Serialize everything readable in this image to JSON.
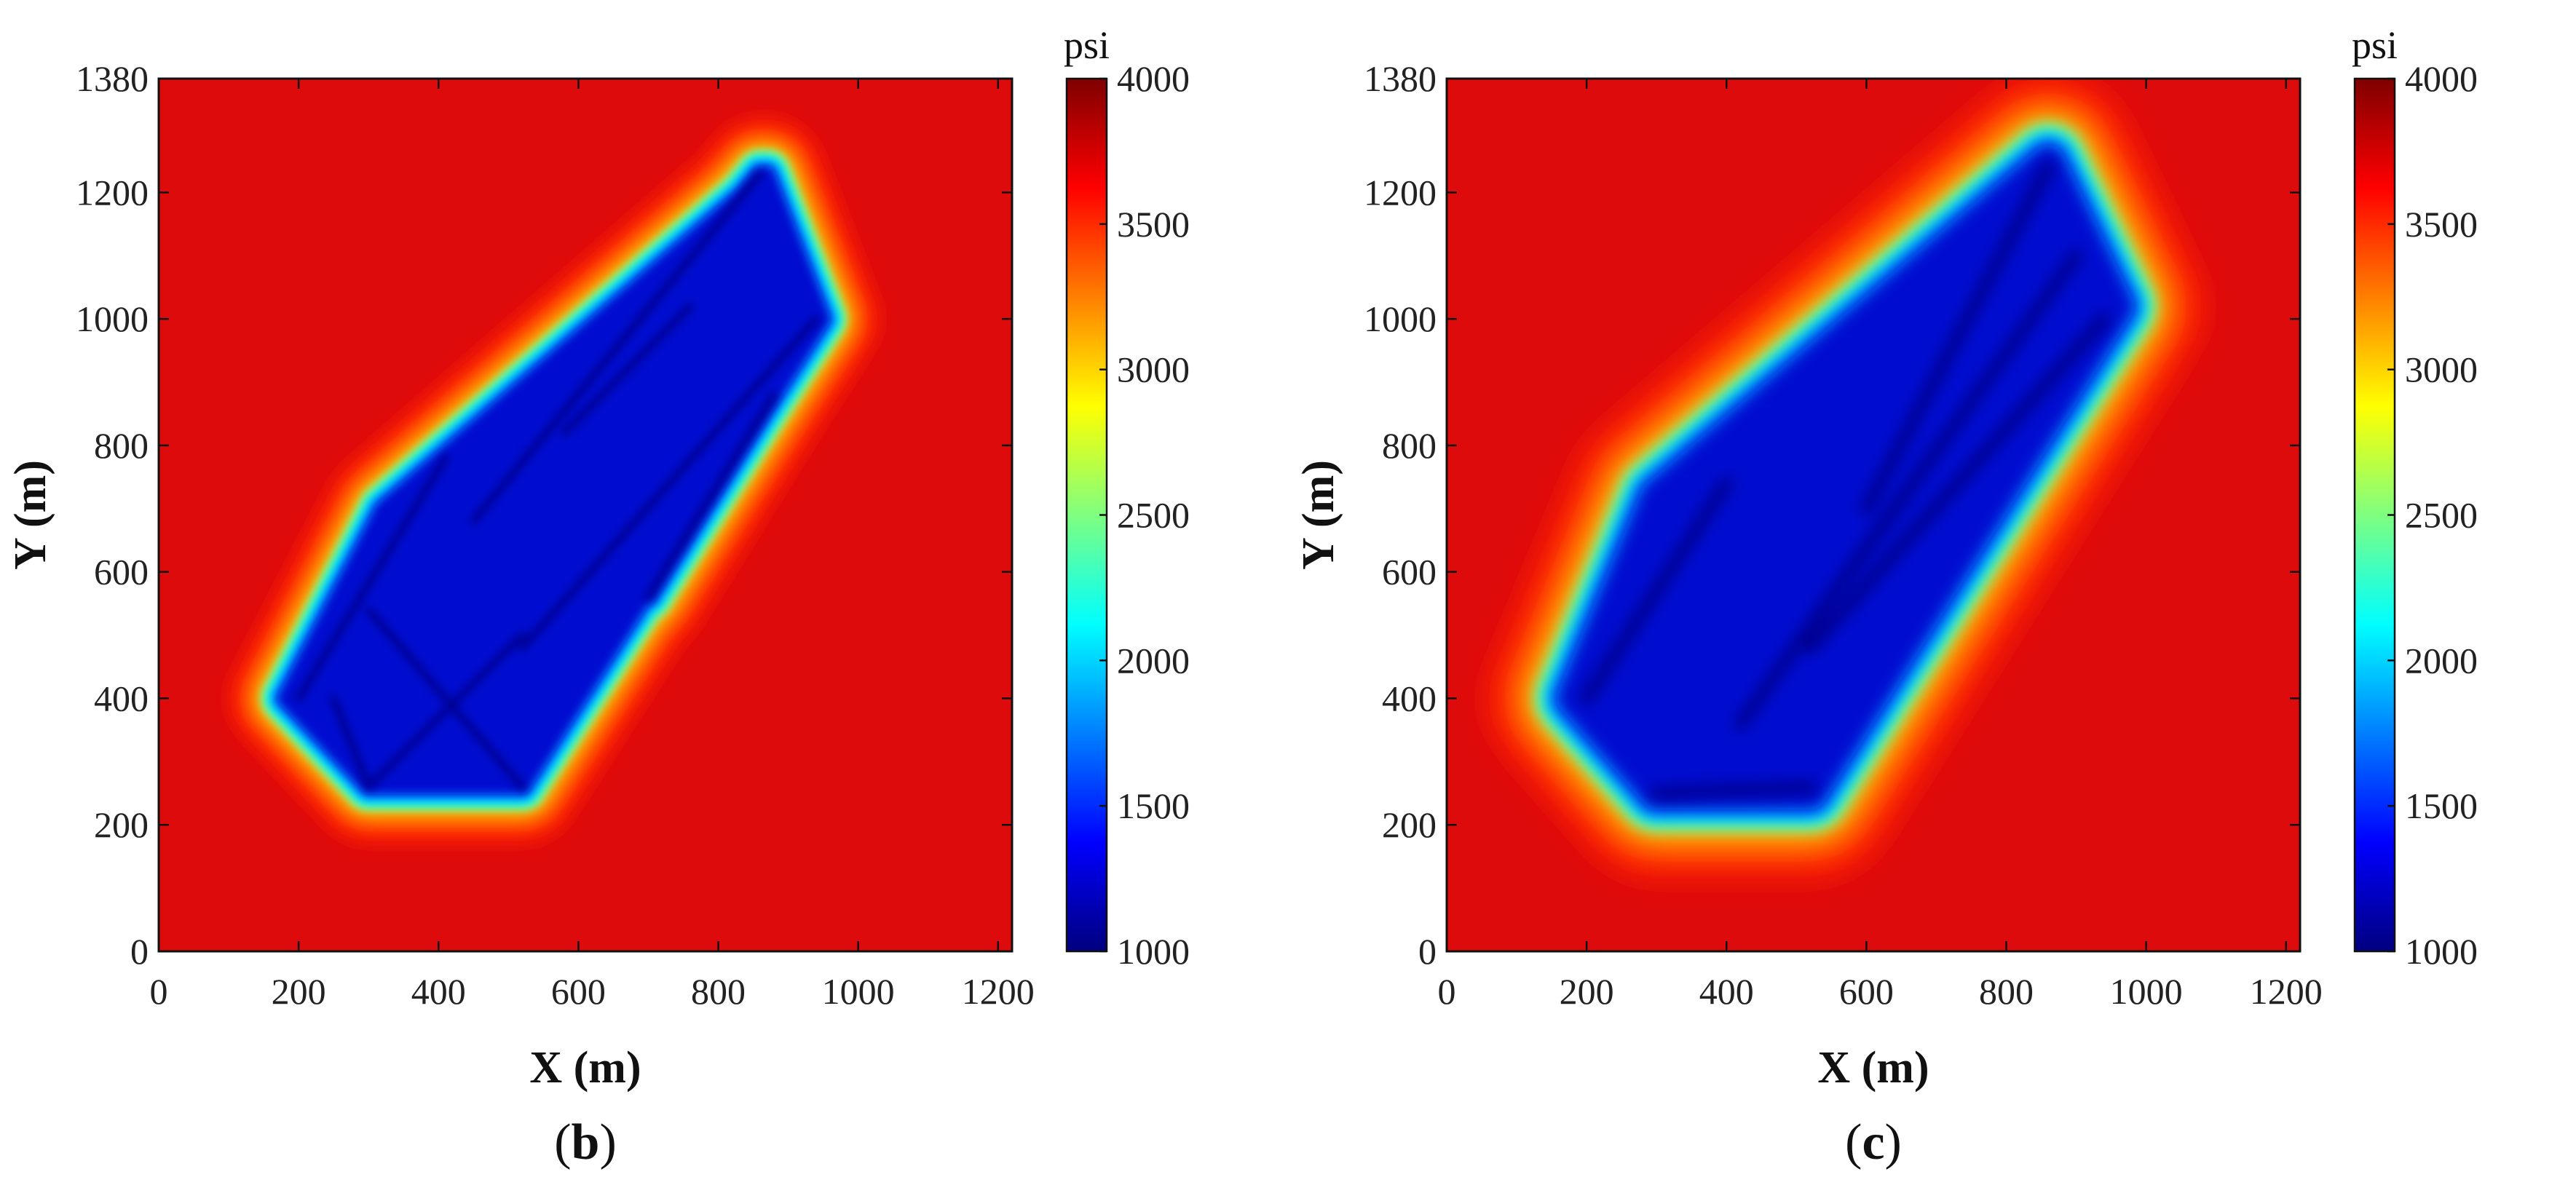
{
  "panels": [
    {
      "caption_open": "(",
      "caption_letter": "b",
      "caption_close": ")",
      "xlabel": "X (m)",
      "ylabel": "Y (m)",
      "colorbar_unit": "psi"
    },
    {
      "caption_open": "(",
      "caption_letter": "c",
      "caption_close": ")",
      "xlabel": "X (m)",
      "ylabel": "Y (m)",
      "colorbar_unit": "psi"
    }
  ],
  "colors": {
    "background_pressure": "#dd0b0b",
    "colormap": [
      "#00007f",
      "#0000ff",
      "#007fff",
      "#00ffff",
      "#7fff7f",
      "#ffff00",
      "#ff7f00",
      "#ff0000",
      "#7f0000"
    ]
  },
  "chart_data": [
    {
      "type": "heatmap",
      "panel": "b",
      "xlabel": "X (m)",
      "ylabel": "Y (m)",
      "xlim": [
        0,
        1220
      ],
      "ylim": [
        0,
        1380
      ],
      "xticks": [
        0,
        200,
        400,
        600,
        800,
        1000,
        1200
      ],
      "yticks": [
        0,
        200,
        400,
        600,
        800,
        1000,
        1200,
        1380
      ],
      "colorbar": {
        "unit": "psi",
        "range": [
          1000,
          4000
        ],
        "ticks": [
          1000,
          1500,
          2000,
          2500,
          3000,
          3500,
          4000
        ]
      },
      "grid": false,
      "initial_pressure_psi": 3900,
      "depleted_region": {
        "description_free": true,
        "min_pressure_psi": 1100,
        "region_polygon_xy_m": [
          [
            180,
            400
          ],
          [
            300,
            260
          ],
          [
            520,
            260
          ],
          [
            950,
            1000
          ],
          [
            870,
            1230
          ],
          [
            320,
            700
          ],
          [
            180,
            400
          ]
        ]
      },
      "fracture_segments_xy_m": [
        [
          [
            200,
            400
          ],
          [
            410,
            780
          ]
        ],
        [
          [
            300,
            260
          ],
          [
            520,
            500
          ]
        ],
        [
          [
            300,
            260
          ],
          [
            250,
            400
          ]
        ],
        [
          [
            300,
            540
          ],
          [
            520,
            260
          ]
        ],
        [
          [
            450,
            680
          ],
          [
            860,
            1230
          ]
        ],
        [
          [
            520,
            480
          ],
          [
            940,
            1000
          ]
        ],
        [
          [
            580,
            820
          ],
          [
            760,
            1020
          ]
        ],
        [
          [
            700,
            560
          ],
          [
            880,
            880
          ]
        ]
      ]
    },
    {
      "type": "heatmap",
      "panel": "c",
      "xlabel": "X (m)",
      "ylabel": "Y (m)",
      "xlim": [
        0,
        1220
      ],
      "ylim": [
        0,
        1380
      ],
      "xticks": [
        0,
        200,
        400,
        600,
        800,
        1000,
        1200
      ],
      "yticks": [
        0,
        200,
        400,
        600,
        800,
        1000,
        1200,
        1380
      ],
      "colorbar": {
        "unit": "psi",
        "range": [
          1000,
          4000
        ],
        "ticks": [
          1000,
          1500,
          2000,
          2500,
          3000,
          3500,
          4000
        ]
      },
      "grid": false,
      "initial_pressure_psi": 3900,
      "depleted_region": {
        "min_pressure_psi": 1050,
        "region_polygon_xy_m": [
          [
            180,
            400
          ],
          [
            300,
            250
          ],
          [
            520,
            250
          ],
          [
            960,
            1020
          ],
          [
            860,
            1250
          ],
          [
            300,
            720
          ],
          [
            180,
            400
          ]
        ]
      },
      "fracture_segments_xy_m": [
        [
          [
            200,
            400
          ],
          [
            400,
            740
          ]
        ],
        [
          [
            300,
            250
          ],
          [
            520,
            260
          ]
        ],
        [
          [
            420,
            360
          ],
          [
            900,
            1100
          ]
        ],
        [
          [
            520,
            480
          ],
          [
            940,
            1000
          ]
        ],
        [
          [
            600,
            700
          ],
          [
            860,
            1240
          ]
        ]
      ]
    }
  ]
}
